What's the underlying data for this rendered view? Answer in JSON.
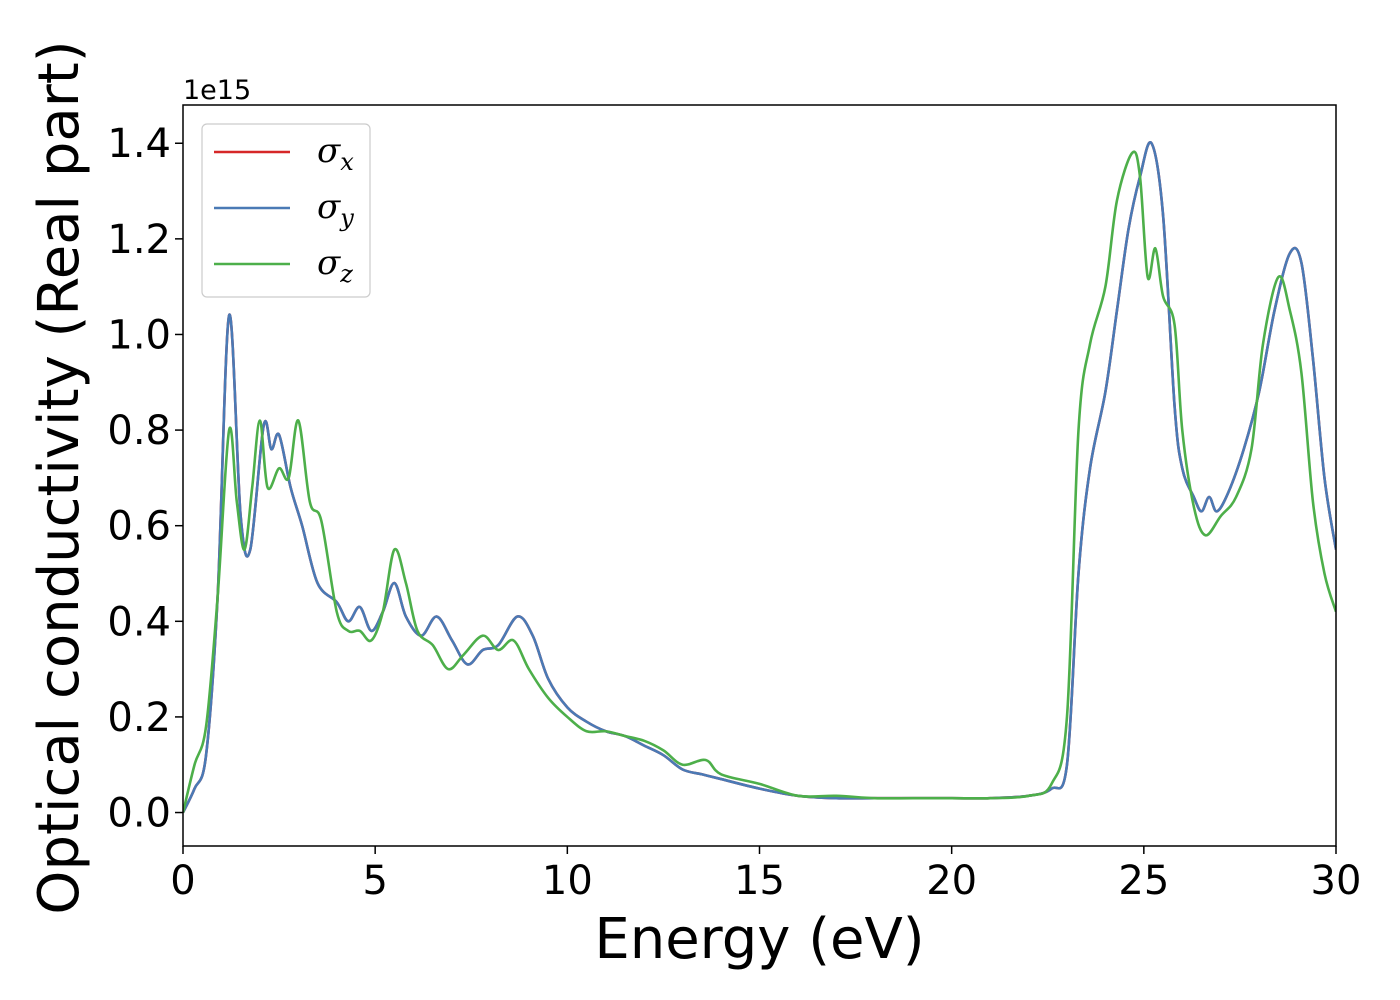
{
  "chart_data": {
    "type": "line",
    "xlabel": "Energy (eV)",
    "ylabel": "Optical conductivity (Real part)",
    "y_offset_label": "1e15",
    "xlim": [
      0,
      30
    ],
    "ylim": [
      -0.07,
      1.48
    ],
    "xticks": [
      0,
      5,
      10,
      15,
      20,
      25,
      30
    ],
    "xtick_labels": [
      "0",
      "5",
      "10",
      "15",
      "20",
      "25",
      "30"
    ],
    "yticks": [
      0.0,
      0.2,
      0.4,
      0.6,
      0.8,
      1.0,
      1.2,
      1.4
    ],
    "ytick_labels": [
      "0.0",
      "0.2",
      "0.4",
      "0.6",
      "0.8",
      "1.0",
      "1.2",
      "1.4"
    ],
    "grid": false,
    "legend": "top-left",
    "series": [
      {
        "name": "σx",
        "base": "σ",
        "sub": "x",
        "color": "#d62728",
        "x": [
          0,
          0.3,
          0.6,
          0.9,
          1.2,
          1.5,
          1.75,
          2.1,
          2.3,
          2.5,
          2.8,
          3.1,
          3.5,
          4.0,
          4.3,
          4.6,
          4.9,
          5.2,
          5.5,
          5.8,
          6.2,
          6.6,
          7.0,
          7.4,
          7.8,
          8.2,
          8.7,
          9.1,
          9.5,
          10.0,
          10.5,
          11.0,
          11.5,
          12.0,
          12.5,
          13.0,
          13.5,
          14.0,
          15.0,
          16.0,
          17.0,
          18.0,
          19.0,
          20.0,
          21.0,
          22.0,
          22.6,
          23.0,
          23.3,
          23.6,
          24.0,
          24.3,
          24.6,
          24.9,
          25.2,
          25.5,
          25.8,
          26.0,
          26.3,
          26.5,
          26.7,
          26.9,
          27.2,
          27.6,
          28.0,
          28.4,
          28.8,
          29.1,
          29.4,
          29.7,
          30.0
        ],
        "y": [
          0.0,
          0.05,
          0.12,
          0.45,
          1.04,
          0.62,
          0.55,
          0.81,
          0.76,
          0.79,
          0.68,
          0.6,
          0.48,
          0.44,
          0.4,
          0.43,
          0.38,
          0.42,
          0.48,
          0.41,
          0.37,
          0.41,
          0.36,
          0.31,
          0.34,
          0.35,
          0.41,
          0.37,
          0.28,
          0.22,
          0.19,
          0.17,
          0.16,
          0.14,
          0.12,
          0.09,
          0.08,
          0.07,
          0.05,
          0.035,
          0.03,
          0.03,
          0.03,
          0.03,
          0.03,
          0.035,
          0.05,
          0.1,
          0.5,
          0.72,
          0.88,
          1.05,
          1.22,
          1.33,
          1.4,
          1.25,
          0.85,
          0.72,
          0.66,
          0.63,
          0.66,
          0.63,
          0.67,
          0.76,
          0.88,
          1.05,
          1.17,
          1.15,
          0.95,
          0.7,
          0.55
        ]
      },
      {
        "name": "σy",
        "base": "σ",
        "sub": "y",
        "color": "#4a7ab5",
        "x": [
          0,
          0.3,
          0.6,
          0.9,
          1.2,
          1.5,
          1.75,
          2.1,
          2.3,
          2.5,
          2.8,
          3.1,
          3.5,
          4.0,
          4.3,
          4.6,
          4.9,
          5.2,
          5.5,
          5.8,
          6.2,
          6.6,
          7.0,
          7.4,
          7.8,
          8.2,
          8.7,
          9.1,
          9.5,
          10.0,
          10.5,
          11.0,
          11.5,
          12.0,
          12.5,
          13.0,
          13.5,
          14.0,
          15.0,
          16.0,
          17.0,
          18.0,
          19.0,
          20.0,
          21.0,
          22.0,
          22.6,
          23.0,
          23.3,
          23.6,
          24.0,
          24.3,
          24.6,
          24.9,
          25.2,
          25.5,
          25.8,
          26.0,
          26.3,
          26.5,
          26.7,
          26.9,
          27.2,
          27.6,
          28.0,
          28.4,
          28.8,
          29.1,
          29.4,
          29.7,
          30.0
        ],
        "y": [
          0.0,
          0.05,
          0.12,
          0.45,
          1.04,
          0.62,
          0.55,
          0.81,
          0.76,
          0.79,
          0.68,
          0.6,
          0.48,
          0.44,
          0.4,
          0.43,
          0.38,
          0.42,
          0.48,
          0.41,
          0.37,
          0.41,
          0.36,
          0.31,
          0.34,
          0.35,
          0.41,
          0.37,
          0.28,
          0.22,
          0.19,
          0.17,
          0.16,
          0.14,
          0.12,
          0.09,
          0.08,
          0.07,
          0.05,
          0.035,
          0.03,
          0.03,
          0.03,
          0.03,
          0.03,
          0.035,
          0.05,
          0.1,
          0.5,
          0.72,
          0.88,
          1.05,
          1.22,
          1.33,
          1.4,
          1.25,
          0.85,
          0.72,
          0.66,
          0.63,
          0.66,
          0.63,
          0.67,
          0.76,
          0.88,
          1.05,
          1.17,
          1.15,
          0.95,
          0.7,
          0.55
        ]
      },
      {
        "name": "σz",
        "base": "σ",
        "sub": "z",
        "color": "#4daf4a",
        "x": [
          0,
          0.3,
          0.6,
          0.9,
          1.2,
          1.4,
          1.6,
          1.8,
          2.0,
          2.2,
          2.5,
          2.75,
          3.0,
          3.3,
          3.6,
          4.0,
          4.3,
          4.6,
          4.9,
          5.2,
          5.5,
          5.8,
          6.1,
          6.5,
          6.9,
          7.3,
          7.8,
          8.2,
          8.6,
          9.0,
          9.5,
          10.0,
          10.5,
          11.0,
          11.5,
          12.0,
          12.5,
          13.0,
          13.6,
          14.0,
          15.0,
          16.0,
          17.0,
          18.0,
          19.0,
          20.0,
          21.0,
          22.0,
          22.6,
          23.0,
          23.3,
          23.6,
          24.0,
          24.3,
          24.7,
          24.9,
          25.1,
          25.3,
          25.5,
          25.8,
          26.0,
          26.3,
          26.6,
          27.0,
          27.4,
          27.8,
          28.1,
          28.5,
          28.8,
          29.1,
          29.4,
          29.7,
          30.0
        ],
        "y": [
          0.0,
          0.1,
          0.18,
          0.45,
          0.8,
          0.65,
          0.55,
          0.68,
          0.82,
          0.68,
          0.72,
          0.7,
          0.82,
          0.65,
          0.61,
          0.42,
          0.38,
          0.38,
          0.36,
          0.42,
          0.55,
          0.48,
          0.38,
          0.35,
          0.3,
          0.33,
          0.37,
          0.34,
          0.36,
          0.3,
          0.24,
          0.2,
          0.17,
          0.17,
          0.16,
          0.15,
          0.13,
          0.1,
          0.11,
          0.08,
          0.06,
          0.035,
          0.035,
          0.03,
          0.03,
          0.03,
          0.03,
          0.035,
          0.06,
          0.2,
          0.8,
          0.98,
          1.1,
          1.28,
          1.38,
          1.33,
          1.12,
          1.18,
          1.08,
          1.02,
          0.8,
          0.64,
          0.58,
          0.62,
          0.66,
          0.76,
          0.98,
          1.12,
          1.05,
          0.92,
          0.65,
          0.5,
          0.42
        ]
      }
    ]
  }
}
